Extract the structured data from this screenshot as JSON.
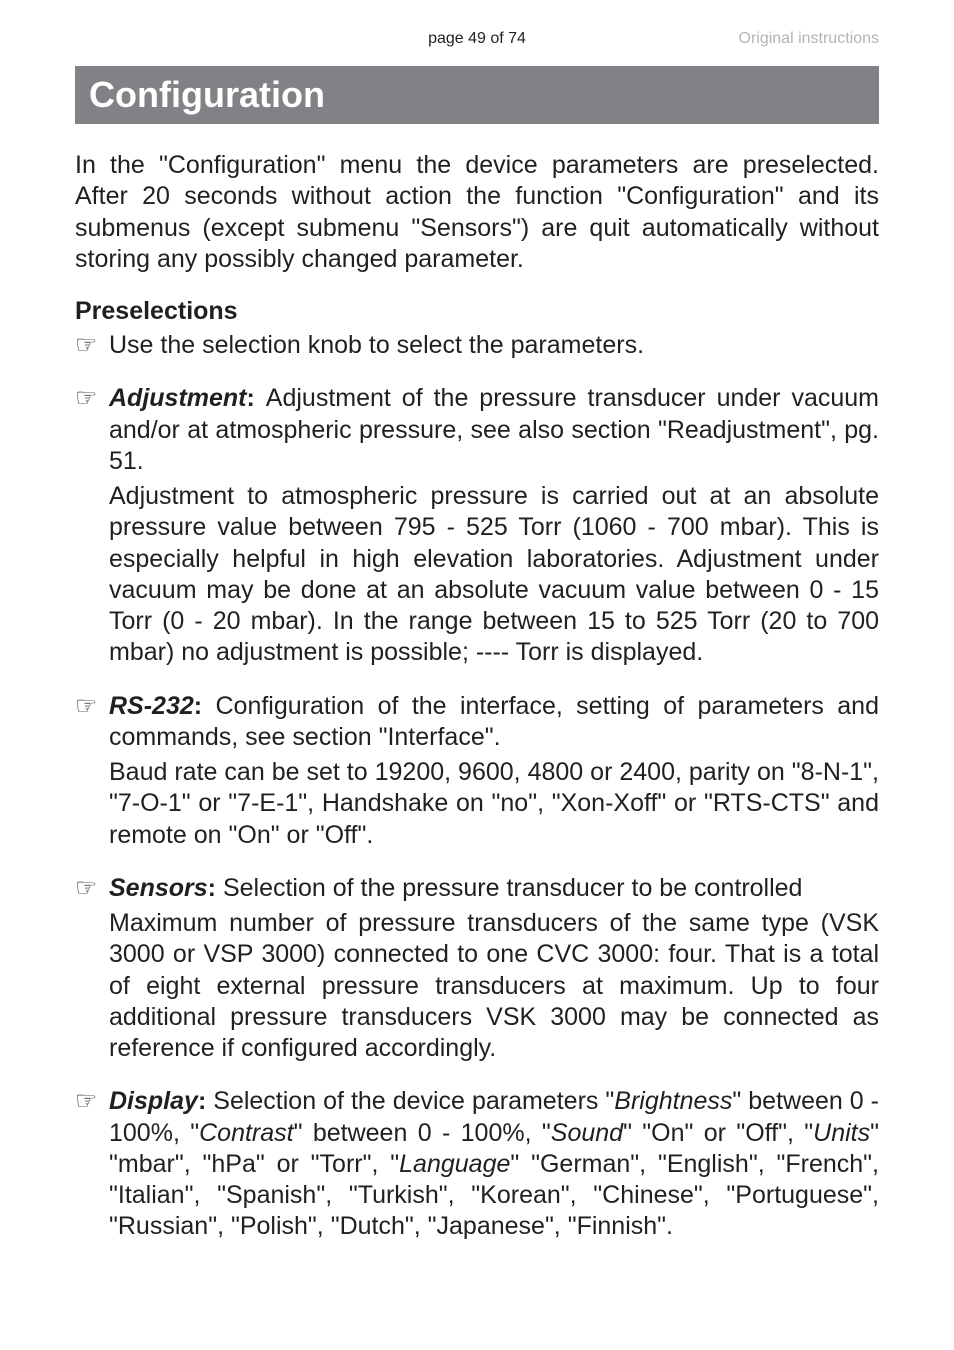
{
  "header": {
    "page_num": "page 49 of 74",
    "right_text": "Original instructions"
  },
  "banner_title": "Configuration",
  "intro_text": "In the \"Configuration\" menu the device parameters are preselected. After 20 seconds without action the function \"Configuration\" and its submenus (except submenu \"Sensors\") are quit automatically without storing any possibly changed parameter.",
  "preselections_heading": "Preselections",
  "pointer_glyph": "☞",
  "bullet_use_selection": "Use the selection knob to select the parameters.",
  "adjustment": {
    "label": "Adjustment",
    "colon_text": ": ",
    "text_after": "Adjustment of the pressure transducer under vacuum and/or at atmospheric pressure, see also section \"Readjustment\", pg. 51.",
    "continuation": "Adjustment to atmospheric pressure is carried out at an absolute pressure value between 795 - 525 Torr (1060  - 700 mbar). This is especially helpful in high elevation laboratories. Adjustment under vacuum may be done at an absolute vacuum value between 0 - 15 Torr (0 - 20 mbar). In the range between 15 to 525 Torr (20 to 700 mbar) no adjustment is possible; ---- Torr is displayed."
  },
  "rs232": {
    "label": "RS-232",
    "colon_text": ": ",
    "text_after": "Configuration of the interface, setting of parameters and commands, see section \"Interface\".",
    "continuation": "Baud rate can be set to 19200, 9600, 4800 or 2400, parity on  \"8-N-1\", \"7-O-1\" or \"7-E-1\", Handshake on \"no\", \"Xon-Xoff\" or \"RTS-CTS\" and remote on \"On\" or \"Off\"."
  },
  "sensors": {
    "label": "Sensors",
    "colon_text": ": ",
    "text_after": "Selection of the pressure transducer to be controlled",
    "continuation": "Maximum number of pressure transducers of the same type (VSK 3000 or VSP 3000) connected to one CVC 3000: four. That is a total of eight external pressure transducers at maximum. Up to four additional pressure transducers VSK 3000 may be connected as reference if configured accordingly."
  },
  "display": {
    "label": "Display",
    "colon_text": ": ",
    "pre": "Selection of the device parameters \"",
    "brightness": "Brightness",
    "seg1": "\" between 0 - 100%, \"",
    "contrast": "Contrast",
    "seg2": "\" between 0 - 100%, \"",
    "sound": "Sound",
    "seg3": "\" \"On\" or \"Off\", \"",
    "units": "Units",
    "seg4": "\" \"mbar\", \"hPa\" or \"Torr\", \"",
    "language": "Language",
    "seg5": "\" \"German\", \"English\", \"French\", \"Italian\", \"Spanish\", \"Turkish\", \"Korean\", \"Chinese\", \"Portuguese\", \"Russian\", \"Polish\", \"Dutch\", \"Japanese\", \"Finnish\"."
  }
}
